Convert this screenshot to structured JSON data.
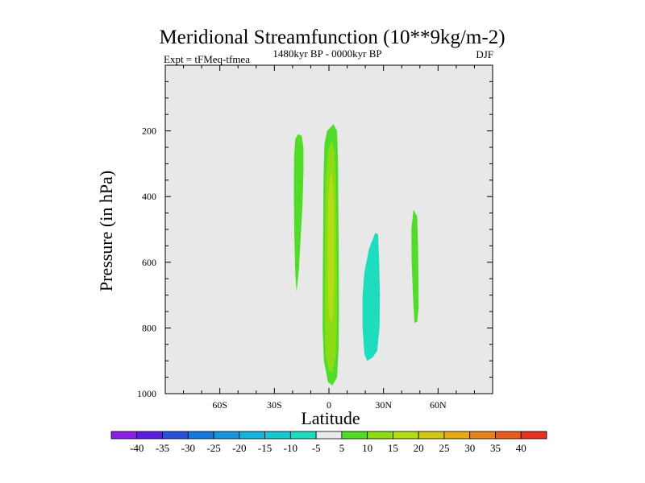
{
  "chart_data": {
    "type": "heatmap",
    "title": "Meridional Streamfunction (10**9kg/m-2)",
    "left_string": "Expt = tFMeq-tfmea",
    "center_string": "1480kyr BP - 0000kyr BP",
    "right_string": "DJF",
    "xlabel": "Latitude",
    "ylabel": "Pressure (in hPa)",
    "xlim": [
      -90,
      90
    ],
    "ylim": [
      1000,
      0
    ],
    "x_ticks": [
      {
        "value": -60,
        "label": "60S"
      },
      {
        "value": -30,
        "label": "30S"
      },
      {
        "value": 0,
        "label": "0"
      },
      {
        "value": 30,
        "label": "30N"
      },
      {
        "value": 60,
        "label": "60N"
      }
    ],
    "y_ticks": [
      {
        "value": 200,
        "label": "200"
      },
      {
        "value": 400,
        "label": "400"
      },
      {
        "value": 600,
        "label": "600"
      },
      {
        "value": 800,
        "label": "800"
      },
      {
        "value": 1000,
        "label": "1000"
      }
    ],
    "background_color": "#e8e8e8",
    "colorbar": {
      "levels": [
        "-40",
        "-35",
        "-30",
        "-25",
        "-20",
        "-15",
        "-10",
        "-5",
        "5",
        "10",
        "15",
        "20",
        "25",
        "30",
        "35",
        "40"
      ],
      "colors": [
        "#8a1ee6",
        "#5a1ee0",
        "#2850dc",
        "#1478e0",
        "#1496dc",
        "#14b4dc",
        "#14c8d2",
        "#1edcbe",
        "#e8e8e8",
        "#50dc28",
        "#8cdc14",
        "#b4dc14",
        "#d2c814",
        "#e6aa14",
        "#e6821e",
        "#e65a1e",
        "#e6321e"
      ]
    },
    "regions": [
      {
        "name": "positive-cell-southern-tropics",
        "value_range": [
          5,
          10
        ],
        "outline": [
          [
            -17,
            210
          ],
          [
            -15,
            215
          ],
          [
            -14,
            250
          ],
          [
            -14,
            320
          ],
          [
            -14.5,
            420
          ],
          [
            -15.5,
            520
          ],
          [
            -16.5,
            620
          ],
          [
            -17.8,
            690
          ],
          [
            -18.5,
            640
          ],
          [
            -19,
            520
          ],
          [
            -19.3,
            400
          ],
          [
            -19.2,
            280
          ],
          [
            -18.5,
            225
          ]
        ]
      },
      {
        "name": "positive-cell-equator-outer",
        "value_range": [
          5,
          10
        ],
        "outline": [
          [
            -1,
            200
          ],
          [
            2.5,
            180
          ],
          [
            4.5,
            200
          ],
          [
            5,
            300
          ],
          [
            5.2,
            450
          ],
          [
            5.4,
            600
          ],
          [
            5.5,
            750
          ],
          [
            5.3,
            860
          ],
          [
            4.5,
            950
          ],
          [
            2,
            975
          ],
          [
            -0.5,
            965
          ],
          [
            -2.8,
            900
          ],
          [
            -3.5,
            800
          ],
          [
            -3.4,
            650
          ],
          [
            -3.2,
            500
          ],
          [
            -3,
            350
          ],
          [
            -2.5,
            240
          ]
        ]
      },
      {
        "name": "positive-cell-equator-inner",
        "value_range": [
          10,
          15
        ],
        "outline": [
          [
            1.5,
            230
          ],
          [
            3,
            260
          ],
          [
            3.6,
            350
          ],
          [
            4,
            500
          ],
          [
            4.2,
            650
          ],
          [
            4.2,
            780
          ],
          [
            3.8,
            880
          ],
          [
            2,
            935
          ],
          [
            0,
            930
          ],
          [
            -1.8,
            880
          ],
          [
            -2.2,
            780
          ],
          [
            -2.2,
            650
          ],
          [
            -2,
            500
          ],
          [
            -1.6,
            350
          ],
          [
            -0.5,
            260
          ]
        ]
      },
      {
        "name": "positive-cell-equator-core",
        "value_range": [
          15,
          20
        ],
        "outline": [
          [
            1.5,
            320
          ],
          [
            2.6,
            400
          ],
          [
            2.8,
            520
          ],
          [
            2.8,
            650
          ],
          [
            2.3,
            760
          ],
          [
            1.2,
            790
          ],
          [
            0,
            760
          ],
          [
            -0.7,
            650
          ],
          [
            -0.6,
            520
          ],
          [
            -0.3,
            400
          ],
          [
            0.5,
            340
          ]
        ]
      },
      {
        "name": "negative-cell-northern-tropics",
        "value_range": [
          -10,
          -5
        ],
        "outline": [
          [
            25.5,
            510
          ],
          [
            27,
            515
          ],
          [
            27.6,
            600
          ],
          [
            28,
            700
          ],
          [
            27.8,
            800
          ],
          [
            26.5,
            870
          ],
          [
            24,
            890
          ],
          [
            21,
            900
          ],
          [
            19.5,
            880
          ],
          [
            18.5,
            800
          ],
          [
            18.5,
            700
          ],
          [
            19.5,
            630
          ],
          [
            22,
            560
          ]
        ]
      },
      {
        "name": "positive-cell-northern-midlatitude",
        "value_range": [
          5,
          10
        ],
        "outline": [
          [
            46.5,
            440
          ],
          [
            48.5,
            460
          ],
          [
            49,
            550
          ],
          [
            49.2,
            650
          ],
          [
            49.3,
            740
          ],
          [
            48.6,
            780
          ],
          [
            47,
            785
          ],
          [
            46.2,
            700
          ],
          [
            45.5,
            600
          ],
          [
            45.3,
            500
          ]
        ]
      }
    ]
  }
}
